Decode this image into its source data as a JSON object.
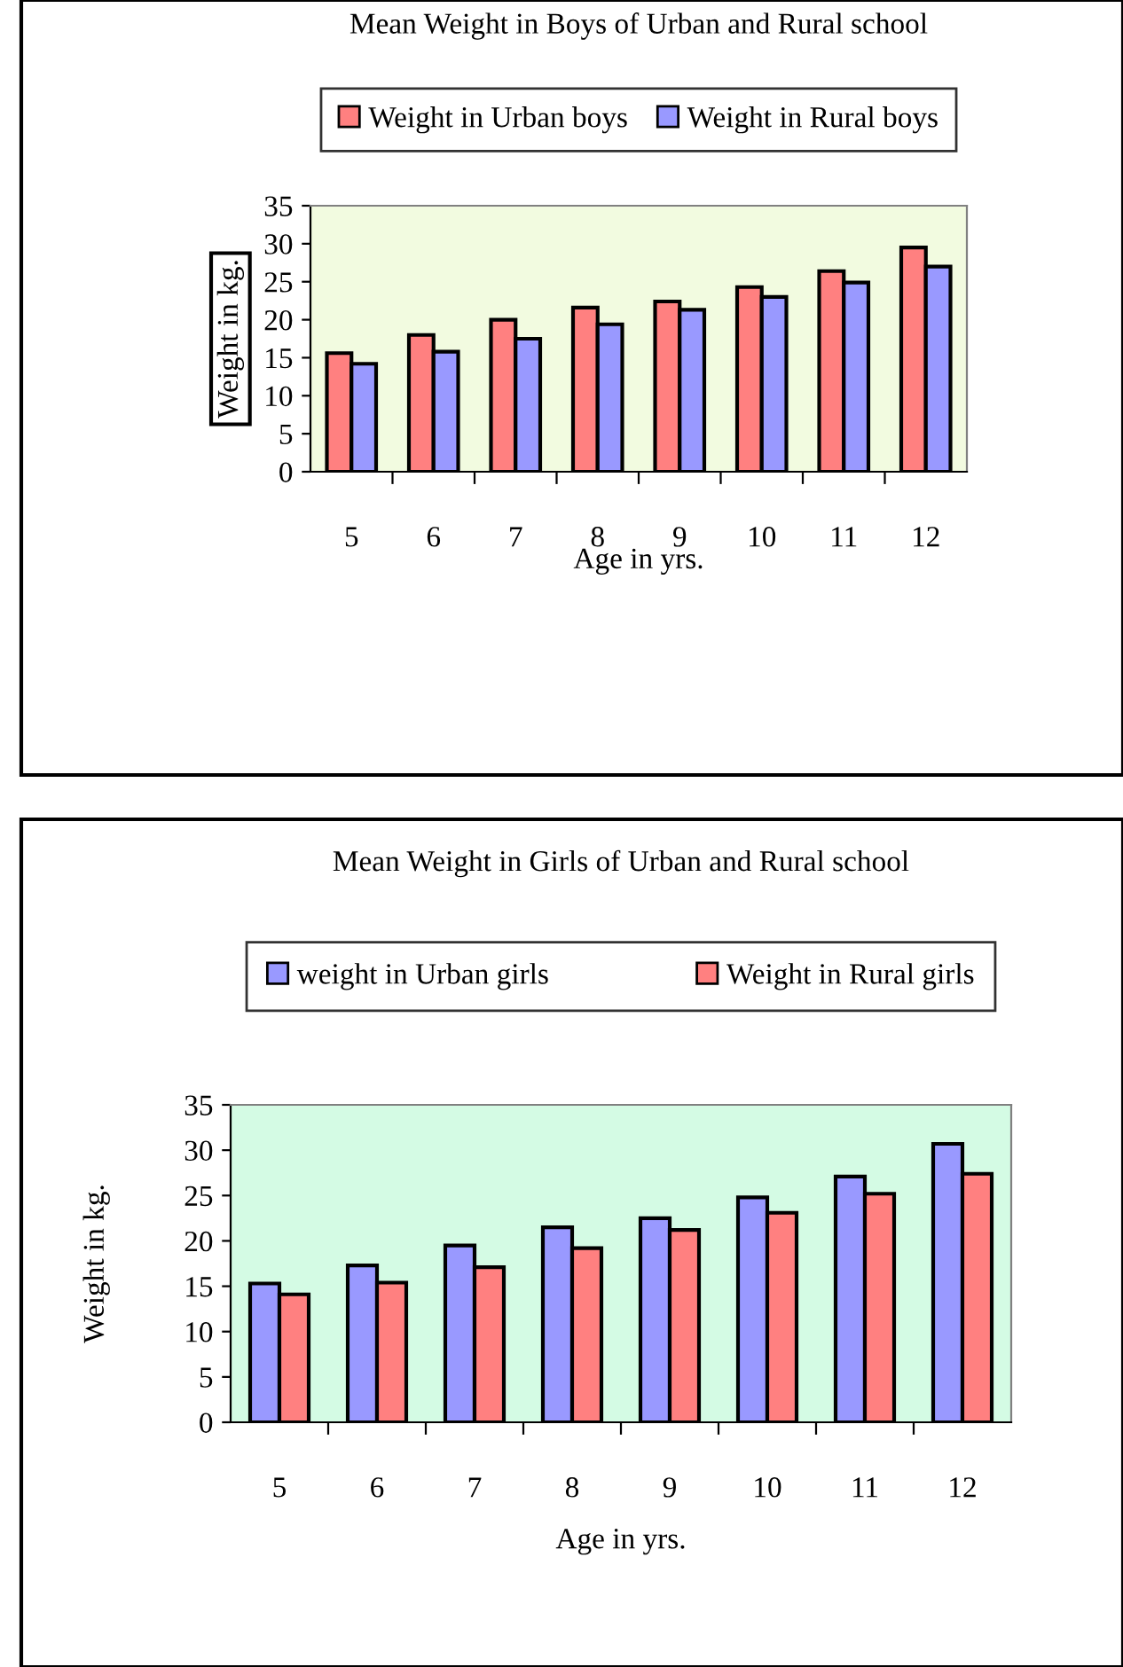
{
  "chart_data": [
    {
      "type": "bar",
      "title": "Mean Weight in Boys of Urban and Rural school",
      "xlabel": "Age in yrs.",
      "ylabel": "Weight in kg.",
      "categories": [
        "5",
        "6",
        "7",
        "8",
        "9",
        "10",
        "11",
        "12"
      ],
      "series": [
        {
          "name": "Weight in Urban boys",
          "color": "#ff8080",
          "values": [
            15.6,
            18.0,
            20.0,
            21.6,
            22.4,
            24.3,
            26.4,
            29.5
          ]
        },
        {
          "name": "Weight in Rural boys",
          "color": "#9999ff",
          "values": [
            14.2,
            15.8,
            17.5,
            19.4,
            21.3,
            23.0,
            24.9,
            27.0
          ]
        }
      ],
      "ylim": [
        0,
        35
      ],
      "yticks": [
        0,
        5,
        10,
        15,
        20,
        25,
        30,
        35
      ],
      "legend": "top",
      "grid": false
    },
    {
      "type": "bar",
      "title": "Mean Weight in Girls of Urban and Rural school",
      "xlabel": "Age in yrs.",
      "ylabel": "Weight in kg.",
      "categories": [
        "5",
        "6",
        "7",
        "8",
        "9",
        "10",
        "11",
        "12"
      ],
      "series": [
        {
          "name": "weight in Urban girls",
          "color": "#9999ff",
          "values": [
            15.3,
            17.3,
            19.5,
            21.5,
            22.5,
            24.8,
            27.1,
            30.7
          ]
        },
        {
          "name": "Weight in Rural girls",
          "color": "#ff8080",
          "values": [
            14.1,
            15.4,
            17.1,
            19.2,
            21.2,
            23.1,
            25.2,
            27.4
          ]
        }
      ],
      "ylim": [
        0,
        35
      ],
      "yticks": [
        0,
        5,
        10,
        15,
        20,
        25,
        30,
        35
      ],
      "legend": "top",
      "grid": false
    }
  ]
}
